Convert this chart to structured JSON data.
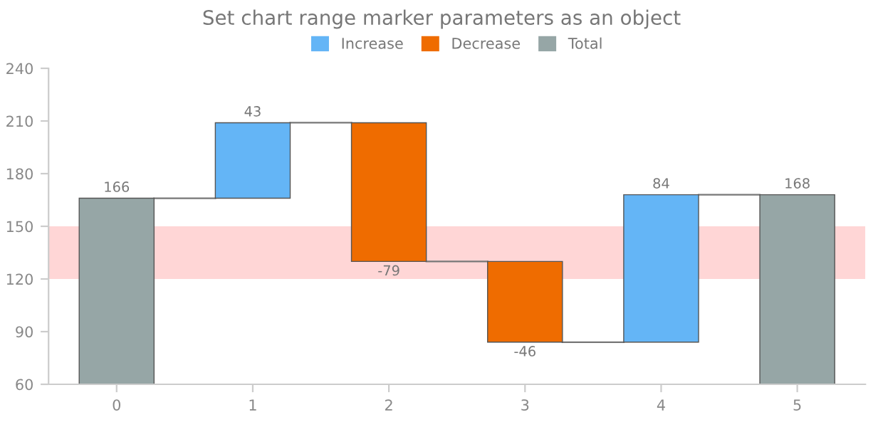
{
  "chart_data": {
    "type": "bar",
    "title": "Set chart range marker parameters as an object",
    "categories": [
      "0",
      "1",
      "2",
      "3",
      "4",
      "5"
    ],
    "series": [
      {
        "name": "Increase",
        "color": "#64b5f6",
        "values": [
          null,
          43,
          null,
          null,
          84,
          null
        ],
        "base": [
          null,
          166,
          null,
          null,
          84,
          null
        ]
      },
      {
        "name": "Decrease",
        "color": "#ef6c00",
        "values": [
          null,
          null,
          -79,
          -46,
          null,
          null
        ],
        "base": [
          null,
          null,
          209,
          130,
          null,
          null
        ]
      },
      {
        "name": "Total",
        "color": "#96a6a6",
        "values": [
          166,
          null,
          null,
          null,
          null,
          168
        ]
      }
    ],
    "ylim": [
      60,
      240
    ],
    "yticks": [
      60,
      90,
      120,
      150,
      180,
      210,
      240
    ],
    "bands": [
      {
        "axis": "y",
        "from": 120,
        "to": 150,
        "color": "#ffd6d6"
      }
    ],
    "data_labels": true,
    "legend": "top",
    "grid": false
  }
}
